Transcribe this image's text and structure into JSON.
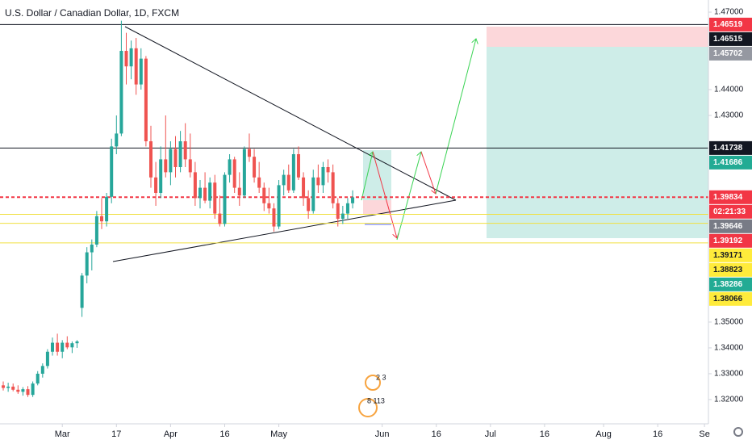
{
  "chart_data": {
    "type": "candlestick",
    "title": "U.S. Dollar / Canadian Dollar, 1D, FXCM",
    "up_color": "#26a69a",
    "down_color": "#ef5350",
    "grid": false,
    "ylim": [
      1.3106,
      1.4747
    ],
    "yticks": [
      {
        "value": 1.47,
        "label": "1.47000"
      },
      {
        "value": 1.44,
        "label": "1.44000"
      },
      {
        "value": 1.43,
        "label": "1.43000"
      },
      {
        "value": 1.35,
        "label": "1.35000"
      },
      {
        "value": 1.34,
        "label": "1.34000"
      },
      {
        "value": 1.33,
        "label": "1.33000"
      },
      {
        "value": 1.32,
        "label": "1.32000"
      }
    ],
    "xlim": [
      -0.66,
      143.3
    ],
    "xticks": [
      {
        "value": 12,
        "label": "Mar"
      },
      {
        "value": 23,
        "label": "17"
      },
      {
        "value": 34,
        "label": "Apr"
      },
      {
        "value": 45,
        "label": "16"
      },
      {
        "value": 56,
        "label": "May"
      },
      {
        "value": 77,
        "label": "Jun"
      },
      {
        "value": 88,
        "label": "16"
      },
      {
        "value": 99,
        "label": "Jul"
      },
      {
        "value": 110,
        "label": "16"
      },
      {
        "value": 122,
        "label": "Aug"
      },
      {
        "value": 133,
        "label": "16"
      },
      {
        "value": 142.5,
        "label": "Se"
      }
    ],
    "open": [
      1.3255,
      1.3245,
      1.325,
      1.3238,
      1.323,
      1.324,
      1.3218,
      1.3262,
      1.33,
      1.333,
      1.3385,
      1.342,
      1.3385,
      1.342,
      1.3402,
      1.3418,
      1.3555,
      1.368,
      1.377,
      1.38,
      1.391,
      1.389,
      1.3985,
      1.418,
      1.423,
      1.455,
      1.449,
      1.456,
      1.442,
      1.452,
      1.42,
      1.406,
      1.4,
      1.413,
      1.408,
      1.417,
      1.41,
      1.42,
      1.413,
      1.408,
      1.398,
      1.402,
      1.397,
      1.404,
      1.392,
      1.388,
      1.407,
      1.413,
      1.402,
      1.399,
      1.417,
      1.414,
      1.406,
      1.402,
      1.396,
      1.394,
      1.387,
      1.403,
      1.407,
      1.401,
      1.415,
      1.406,
      1.398,
      1.393,
      1.406,
      1.403,
      1.41,
      1.408,
      1.396,
      1.39,
      1.392,
      1.396
    ],
    "high": [
      1.327,
      1.3265,
      1.3262,
      1.3255,
      1.3248,
      1.3252,
      1.327,
      1.331,
      1.334,
      1.3395,
      1.344,
      1.3455,
      1.343,
      1.3445,
      1.3425,
      1.343,
      1.369,
      1.379,
      1.382,
      1.393,
      1.398,
      1.4,
      1.421,
      1.43,
      1.4667,
      1.462,
      1.459,
      1.46,
      1.456,
      1.453,
      1.426,
      1.412,
      1.418,
      1.43,
      1.42,
      1.422,
      1.424,
      1.427,
      1.423,
      1.412,
      1.405,
      1.408,
      1.406,
      1.407,
      1.399,
      1.408,
      1.415,
      1.414,
      1.408,
      1.418,
      1.423,
      1.417,
      1.412,
      1.404,
      1.402,
      1.396,
      1.405,
      1.409,
      1.411,
      1.417,
      1.418,
      1.408,
      1.401,
      1.409,
      1.411,
      1.412,
      1.413,
      1.411,
      1.398,
      1.395,
      1.398,
      1.401
    ],
    "low": [
      1.3235,
      1.323,
      1.3232,
      1.3222,
      1.3215,
      1.321,
      1.321,
      1.3255,
      1.3285,
      1.332,
      1.337,
      1.337,
      1.336,
      1.3395,
      1.338,
      1.34,
      1.352,
      1.365,
      1.37,
      1.379,
      1.386,
      1.387,
      1.396,
      1.415,
      1.422,
      1.442,
      1.444,
      1.438,
      1.44,
      1.418,
      1.402,
      1.395,
      1.398,
      1.406,
      1.403,
      1.406,
      1.408,
      1.41,
      1.406,
      1.395,
      1.394,
      1.396,
      1.394,
      1.39,
      1.387,
      1.387,
      1.404,
      1.4,
      1.395,
      1.398,
      1.412,
      1.404,
      1.4,
      1.393,
      1.392,
      1.385,
      1.386,
      1.399,
      1.4,
      1.4,
      1.405,
      1.395,
      1.39,
      1.392,
      1.4,
      1.4,
      1.404,
      1.394,
      1.387,
      1.388,
      1.39,
      1.394
    ],
    "close": [
      1.3245,
      1.325,
      1.3238,
      1.323,
      1.324,
      1.3218,
      1.3262,
      1.33,
      1.333,
      1.3385,
      1.342,
      1.3385,
      1.342,
      1.3402,
      1.3418,
      1.3425,
      1.368,
      1.377,
      1.38,
      1.391,
      1.389,
      1.3985,
      1.418,
      1.423,
      1.455,
      1.449,
      1.456,
      1.442,
      1.452,
      1.42,
      1.406,
      1.4,
      1.413,
      1.408,
      1.417,
      1.41,
      1.42,
      1.413,
      1.408,
      1.398,
      1.402,
      1.397,
      1.404,
      1.392,
      1.388,
      1.407,
      1.413,
      1.402,
      1.399,
      1.417,
      1.414,
      1.406,
      1.402,
      1.396,
      1.394,
      1.387,
      1.403,
      1.407,
      1.401,
      1.415,
      1.406,
      1.398,
      1.393,
      1.406,
      1.403,
      1.41,
      1.408,
      1.396,
      1.39,
      1.392,
      1.396,
      1.3983
    ],
    "price_labels": [
      {
        "value": 1.46519,
        "color": "#f23645",
        "text_color": "#ffffff",
        "line_color": "#131722"
      },
      {
        "value": 1.46515,
        "color": "#131722",
        "text_color": "#ffffff"
      },
      {
        "value": 1.45702,
        "color": "#9598a1",
        "text_color": "#ffffff"
      },
      {
        "value": 1.41738,
        "color": "#131722",
        "text_color": "#ffffff",
        "line_color": "#131722"
      },
      {
        "value": 1.41686,
        "color": "#22ab94",
        "text_color": "#ffffff"
      },
      {
        "value": 1.39834,
        "color": "#f23645",
        "text_color": "#ffffff",
        "line_color": "#f23645",
        "dashed": true
      },
      {
        "text": "02:21:33",
        "color": "#f23645",
        "text_color": "#ffffff"
      },
      {
        "value": 1.39646,
        "color": "#787b86",
        "text_color": "#ffffff"
      },
      {
        "value": 1.39192,
        "color": "#f23645",
        "text_color": "#ffffff"
      },
      {
        "value": 1.39171,
        "color": "#ffeb3b",
        "text_color": "#131722",
        "line_color": "#f0e040"
      },
      {
        "value": 1.38823,
        "color": "#ffeb3b",
        "text_color": "#131722",
        "line_color": "#f0e040"
      },
      {
        "value": 1.38286,
        "color": "#22ab94",
        "text_color": "#ffffff"
      },
      {
        "value": 1.38066,
        "color": "#ffeb3b",
        "text_color": "#131722",
        "line_color": "#f0e040"
      }
    ],
    "events": [
      "2 3",
      "8 113"
    ]
  }
}
